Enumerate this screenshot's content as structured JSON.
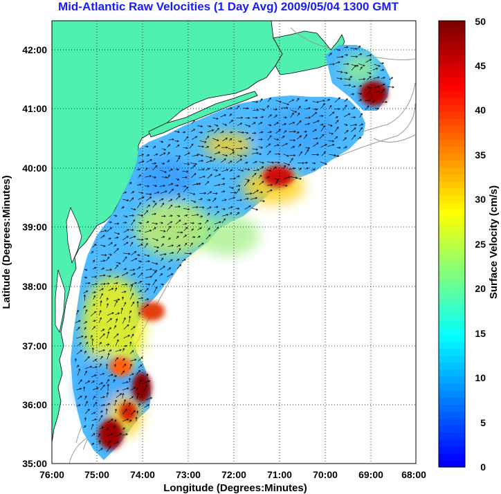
{
  "title": "Mid-Atlantic Raw Velocities (1 Day Avg) 2009/05/04 1300 GMT",
  "xlabel": "Longitude (Degrees:Minutes)",
  "ylabel": "Latitude (Degrees:Minutes)",
  "colorbar_label": "Surface Velocity (cm/s)",
  "colors": {
    "land": "#4ff0b0",
    "coast": "#000000",
    "bathymetry": "#9a9a9a",
    "grid": "#000000"
  },
  "chart_data": {
    "type": "heatmap",
    "title": "Mid-Atlantic Raw Velocities (1 Day Avg) 2009/05/04 1300 GMT",
    "xlabel": "Longitude (Degrees:Minutes)",
    "ylabel": "Latitude (Degrees:Minutes)",
    "x_ticks": [
      "76:00",
      "75:00",
      "74:00",
      "73:00",
      "72:00",
      "71:00",
      "70:00",
      "69:00",
      "68:00"
    ],
    "y_ticks": [
      "35:00",
      "36:00",
      "37:00",
      "38:00",
      "39:00",
      "40:00",
      "41:00",
      "42:00"
    ],
    "xlim_west_deg": [
      76,
      68
    ],
    "ylim_north_deg": [
      35,
      42.5
    ],
    "grid": "dotted",
    "colorbar": {
      "label": "Surface Velocity (cm/s)",
      "ticks": [
        0,
        5,
        10,
        15,
        20,
        25,
        30,
        35,
        40,
        45,
        50
      ],
      "range": [
        0,
        50
      ],
      "colormap": "jet"
    },
    "high_velocity_regions": [
      {
        "lon_w": 68.9,
        "lat_n": 41.2,
        "speed_cm_s": 48
      },
      {
        "lon_w": 71.0,
        "lat_n": 39.85,
        "speed_cm_s": 45
      },
      {
        "lon_w": 71.3,
        "lat_n": 39.5,
        "speed_cm_s": 30
      },
      {
        "lon_w": 72.4,
        "lat_n": 40.45,
        "speed_cm_s": 30
      },
      {
        "lon_w": 74.1,
        "lat_n": 37.9,
        "speed_cm_s": 28
      },
      {
        "lon_w": 74.1,
        "lat_n": 37.6,
        "speed_cm_s": 40
      },
      {
        "lon_w": 74.5,
        "lat_n": 36.6,
        "speed_cm_s": 35
      },
      {
        "lon_w": 74.1,
        "lat_n": 36.2,
        "speed_cm_s": 50
      },
      {
        "lon_w": 74.6,
        "lat_n": 35.7,
        "speed_cm_s": 50
      },
      {
        "lon_w": 74.9,
        "lat_n": 35.3,
        "speed_cm_s": 45
      }
    ]
  }
}
